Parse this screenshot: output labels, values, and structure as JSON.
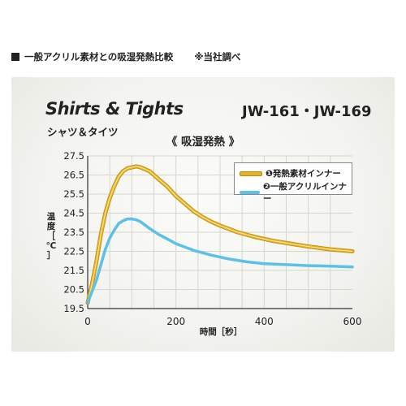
{
  "caption": {
    "text": "一般アクリル素材との吸湿発熱比較",
    "note": "※当社調べ"
  },
  "header": {
    "title_en": "Shirts & Tights",
    "title_jp": "シャツ＆タイツ",
    "models": "JW-161・JW-169",
    "subtitle": "《 吸湿発熱 》"
  },
  "colors": {
    "series_gold": "#e5b324",
    "series_blue": "#5cc0e8",
    "axis": "#333333",
    "grid": "#d6d6d0"
  },
  "chart_data": {
    "type": "line",
    "xlabel": "時間［秒］",
    "ylabel": "温度［℃］",
    "xlim": [
      0,
      600
    ],
    "ylim": [
      19.5,
      27.5
    ],
    "xticks": [
      0,
      200,
      400,
      600
    ],
    "yticks": [
      19.5,
      20.5,
      21.5,
      22.5,
      23.5,
      24.5,
      25.5,
      26.5,
      27.5
    ],
    "grid": true,
    "legend_position": "top-right",
    "series": [
      {
        "name": "❶発熱素材インナー",
        "color": "#e5b324",
        "points": [
          [
            0,
            19.8
          ],
          [
            10,
            20.8
          ],
          [
            20,
            22.0
          ],
          [
            30,
            23.4
          ],
          [
            40,
            24.5
          ],
          [
            50,
            25.3
          ],
          [
            60,
            25.9
          ],
          [
            70,
            26.4
          ],
          [
            80,
            26.7
          ],
          [
            90,
            26.85
          ],
          [
            100,
            26.9
          ],
          [
            110,
            26.95
          ],
          [
            120,
            26.9
          ],
          [
            140,
            26.7
          ],
          [
            160,
            26.3
          ],
          [
            180,
            25.9
          ],
          [
            200,
            25.4
          ],
          [
            220,
            25.0
          ],
          [
            240,
            24.6
          ],
          [
            260,
            24.3
          ],
          [
            280,
            24.05
          ],
          [
            300,
            23.85
          ],
          [
            340,
            23.5
          ],
          [
            380,
            23.25
          ],
          [
            420,
            23.05
          ],
          [
            460,
            22.9
          ],
          [
            500,
            22.75
          ],
          [
            550,
            22.6
          ],
          [
            600,
            22.5
          ]
        ]
      },
      {
        "name": "❷一般アクリルインナー",
        "color": "#5cc0e8",
        "points": [
          [
            0,
            19.8
          ],
          [
            10,
            20.4
          ],
          [
            20,
            21.0
          ],
          [
            30,
            21.8
          ],
          [
            40,
            22.6
          ],
          [
            50,
            23.2
          ],
          [
            60,
            23.6
          ],
          [
            70,
            23.95
          ],
          [
            80,
            24.1
          ],
          [
            90,
            24.2
          ],
          [
            100,
            24.2
          ],
          [
            110,
            24.15
          ],
          [
            120,
            24.05
          ],
          [
            140,
            23.7
          ],
          [
            160,
            23.4
          ],
          [
            180,
            23.15
          ],
          [
            200,
            22.9
          ],
          [
            240,
            22.55
          ],
          [
            280,
            22.3
          ],
          [
            320,
            22.1
          ],
          [
            360,
            21.95
          ],
          [
            400,
            21.85
          ],
          [
            450,
            21.8
          ],
          [
            500,
            21.75
          ],
          [
            550,
            21.72
          ],
          [
            600,
            21.68
          ]
        ]
      }
    ]
  }
}
